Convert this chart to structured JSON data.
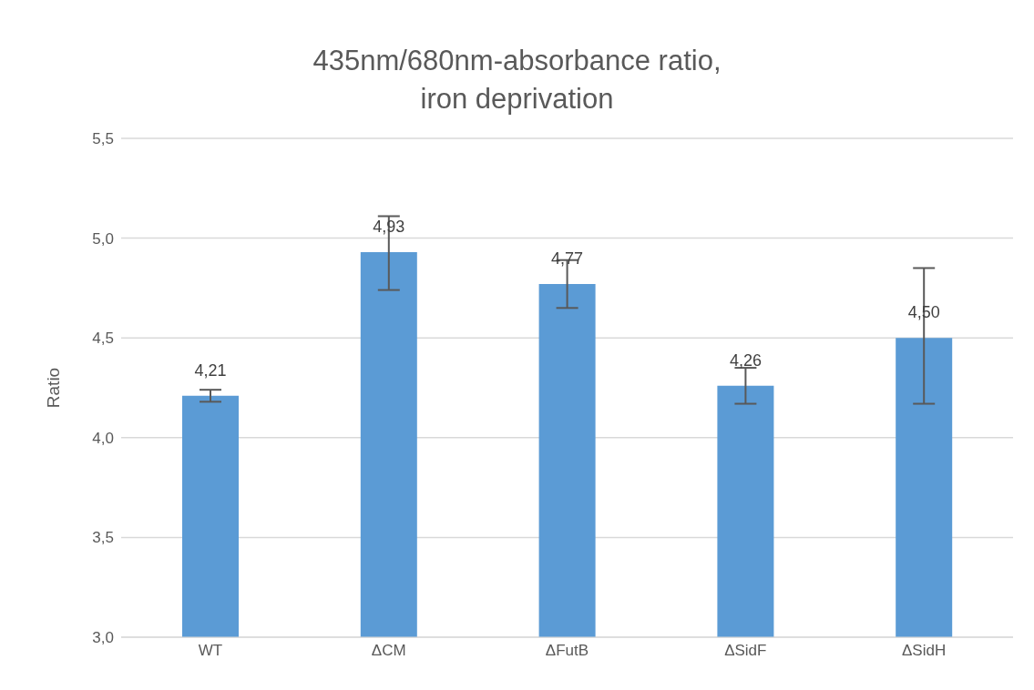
{
  "chart_data": {
    "type": "bar",
    "title": "435nm/680nm-absorbance ratio,\niron deprivation",
    "ylabel": "Ratio",
    "categories": [
      "WT",
      "ΔCM",
      "ΔFutB",
      "ΔSidF",
      "ΔSidH"
    ],
    "values": [
      4.21,
      4.93,
      4.77,
      4.26,
      4.5
    ],
    "value_labels": [
      "4,21",
      "4,93",
      "4,77",
      "4,26",
      "4,50"
    ],
    "errors": [
      [
        4.18,
        4.24
      ],
      [
        4.74,
        5.11
      ],
      [
        4.65,
        4.89
      ],
      [
        4.17,
        4.35
      ],
      [
        4.17,
        4.85
      ]
    ],
    "color": "#5b9bd5",
    "ylim": [
      3.0,
      5.5
    ],
    "yticks": [
      {
        "value": 3.0,
        "label": "3,0"
      },
      {
        "value": 3.5,
        "label": "3,5"
      },
      {
        "value": 4.0,
        "label": "4,0"
      },
      {
        "value": 4.5,
        "label": "4,5"
      },
      {
        "value": 5.0,
        "label": "5,0"
      },
      {
        "value": 5.5,
        "label": "5,5"
      }
    ],
    "grid": "y",
    "legend": false
  }
}
